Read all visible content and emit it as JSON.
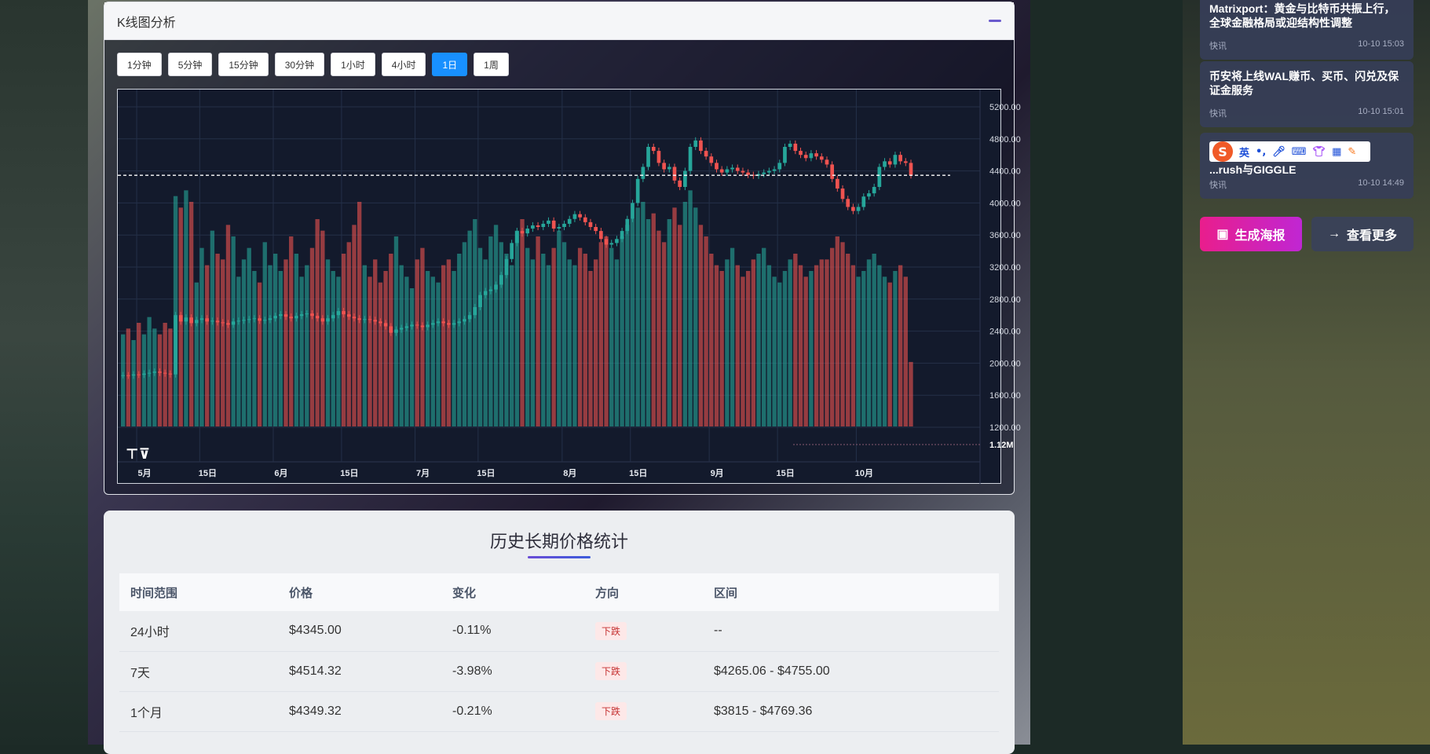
{
  "kline_panel": {
    "title": "K线图分析",
    "timeframes": [
      "1分钟",
      "5分钟",
      "15分钟",
      "30分钟",
      "1小时",
      "4小时",
      "1日",
      "1周"
    ],
    "active_timeframe": "1日"
  },
  "chart_data": {
    "type": "candlestick",
    "y_ticks": [
      "5200.00",
      "4800.00",
      "4400.00",
      "4000.00",
      "3600.00",
      "3200.00",
      "2800.00",
      "2400.00",
      "2000.00",
      "1600.00",
      "1200.00"
    ],
    "ylim": [
      1200,
      5200
    ],
    "x_ticks": [
      "5月",
      "15日",
      "6月",
      "15日",
      "7月",
      "15日",
      "8月",
      "15日",
      "9月",
      "15日",
      "10月"
    ],
    "current_price_line": 4345,
    "volume_label": "1.12M",
    "colors": {
      "up": "#26a69a",
      "down": "#ef5350"
    },
    "close": [
      1850,
      1845,
      1860,
      1855,
      1870,
      1880,
      1895,
      1880,
      1870,
      1860,
      2600,
      2520,
      2570,
      2500,
      2540,
      2560,
      2520,
      2530,
      2510,
      2500,
      2480,
      2520,
      2530,
      2540,
      2550,
      2560,
      2530,
      2540,
      2560,
      2590,
      2610,
      2580,
      2560,
      2590,
      2610,
      2620,
      2590,
      2560,
      2520,
      2560,
      2600,
      2650,
      2610,
      2580,
      2560,
      2540,
      2550,
      2540,
      2520,
      2500,
      2460,
      2380,
      2420,
      2440,
      2460,
      2480,
      2470,
      2450,
      2480,
      2500,
      2520,
      2500,
      2480,
      2500,
      2520,
      2550,
      2600,
      2700,
      2850,
      2900,
      2920,
      2980,
      3100,
      3300,
      3500,
      3650,
      3620,
      3680,
      3720,
      3700,
      3740,
      3780,
      3680,
      3700,
      3740,
      3800,
      3860,
      3820,
      3760,
      3700,
      3650,
      3550,
      3480,
      3500,
      3550,
      3650,
      3800,
      4000,
      4300,
      4450,
      4700,
      4650,
      4500,
      4420,
      4450,
      4280,
      4200,
      4400,
      4700,
      4780,
      4650,
      4580,
      4500,
      4420,
      4380,
      4420,
      4440,
      4400,
      4380,
      4350,
      4340,
      4360,
      4380,
      4400,
      4420,
      4500,
      4700,
      4740,
      4650,
      4600,
      4560,
      4620,
      4580,
      4540,
      4480,
      4300,
      4180,
      4050,
      3950,
      3900,
      3950,
      4080,
      4120,
      4200,
      4450,
      4520,
      4480,
      4600,
      4520,
      4500,
      4345
    ],
    "volume": [
      1.6,
      1.7,
      1.5,
      1.8,
      1.6,
      1.9,
      1.7,
      1.6,
      1.8,
      1.7,
      4.0,
      3.8,
      4.1,
      3.9,
      2.5,
      3.1,
      2.8,
      3.4,
      3.0,
      2.9,
      3.5,
      3.3,
      2.6,
      2.9,
      3.1,
      2.7,
      2.5,
      3.2,
      2.8,
      3.0,
      2.7,
      2.9,
      3.3,
      3.0,
      2.6,
      2.8,
      3.1,
      3.6,
      3.4,
      2.9,
      2.7,
      2.6,
      3.0,
      3.2,
      3.5,
      3.9,
      2.8,
      2.6,
      2.9,
      2.5,
      2.7,
      3.0,
      3.3,
      2.8,
      2.6,
      2.4,
      2.9,
      3.1,
      2.7,
      2.6,
      2.5,
      2.8,
      2.9,
      2.7,
      3.0,
      3.2,
      3.4,
      3.6,
      3.1,
      2.9,
      3.3,
      3.5,
      3.2,
      3.0,
      2.8,
      3.4,
      3.6,
      3.1,
      2.9,
      3.3,
      3.0,
      2.8,
      3.1,
      3.4,
      3.2,
      2.9,
      2.8,
      3.1,
      3.0,
      2.7,
      2.9,
      3.2,
      3.3,
      3.1,
      2.9,
      3.3,
      3.5,
      3.6,
      3.8,
      3.9,
      3.6,
      3.7,
      3.4,
      3.2,
      3.6,
      3.8,
      3.5,
      3.9,
      4.1,
      3.8,
      3.5,
      3.3,
      3.0,
      2.8,
      2.7,
      2.9,
      3.1,
      2.8,
      2.6,
      2.7,
      2.9,
      3.0,
      3.1,
      2.8,
      2.6,
      2.5,
      2.7,
      2.9,
      3.0,
      2.8,
      2.6,
      2.7,
      2.8,
      2.9,
      2.9,
      3.1,
      3.3,
      3.2,
      3.0,
      2.8,
      2.6,
      2.7,
      2.9,
      3.0,
      2.8,
      2.6,
      2.5,
      2.7,
      2.8,
      2.6,
      1.12
    ]
  },
  "stats": {
    "title": "历史长期价格统计",
    "headers": [
      "时间范围",
      "价格",
      "变化",
      "方向",
      "区间"
    ],
    "rows": [
      {
        "range": "24小时",
        "price": "$4345.00",
        "change": "-0.11%",
        "direction": "下跌",
        "interval": "--"
      },
      {
        "range": "7天",
        "price": "$4514.32",
        "change": "-3.98%",
        "direction": "下跌",
        "interval": "$4265.06 - $4755.00"
      },
      {
        "range": "1个月",
        "price": "$4349.32",
        "change": "-0.21%",
        "direction": "下跌",
        "interval": "$3815 - $4769.36"
      }
    ]
  },
  "news": [
    {
      "title": "Matrixport：黄金与比特币共振上行，全球金融格局或迎结构性调整",
      "tag": "快讯",
      "time": "10-10 15:03"
    },
    {
      "title": "币安将上线WAL赚币、买币、闪兑及保证金服务",
      "tag": "快讯",
      "time": "10-10 15:01"
    },
    {
      "title": "...rush与GIGGLE",
      "tag": "快讯",
      "time": "10-10 14:49"
    }
  ],
  "ime": {
    "lang": "英"
  },
  "actions": {
    "poster": "生成海报",
    "more": "查看更多"
  }
}
